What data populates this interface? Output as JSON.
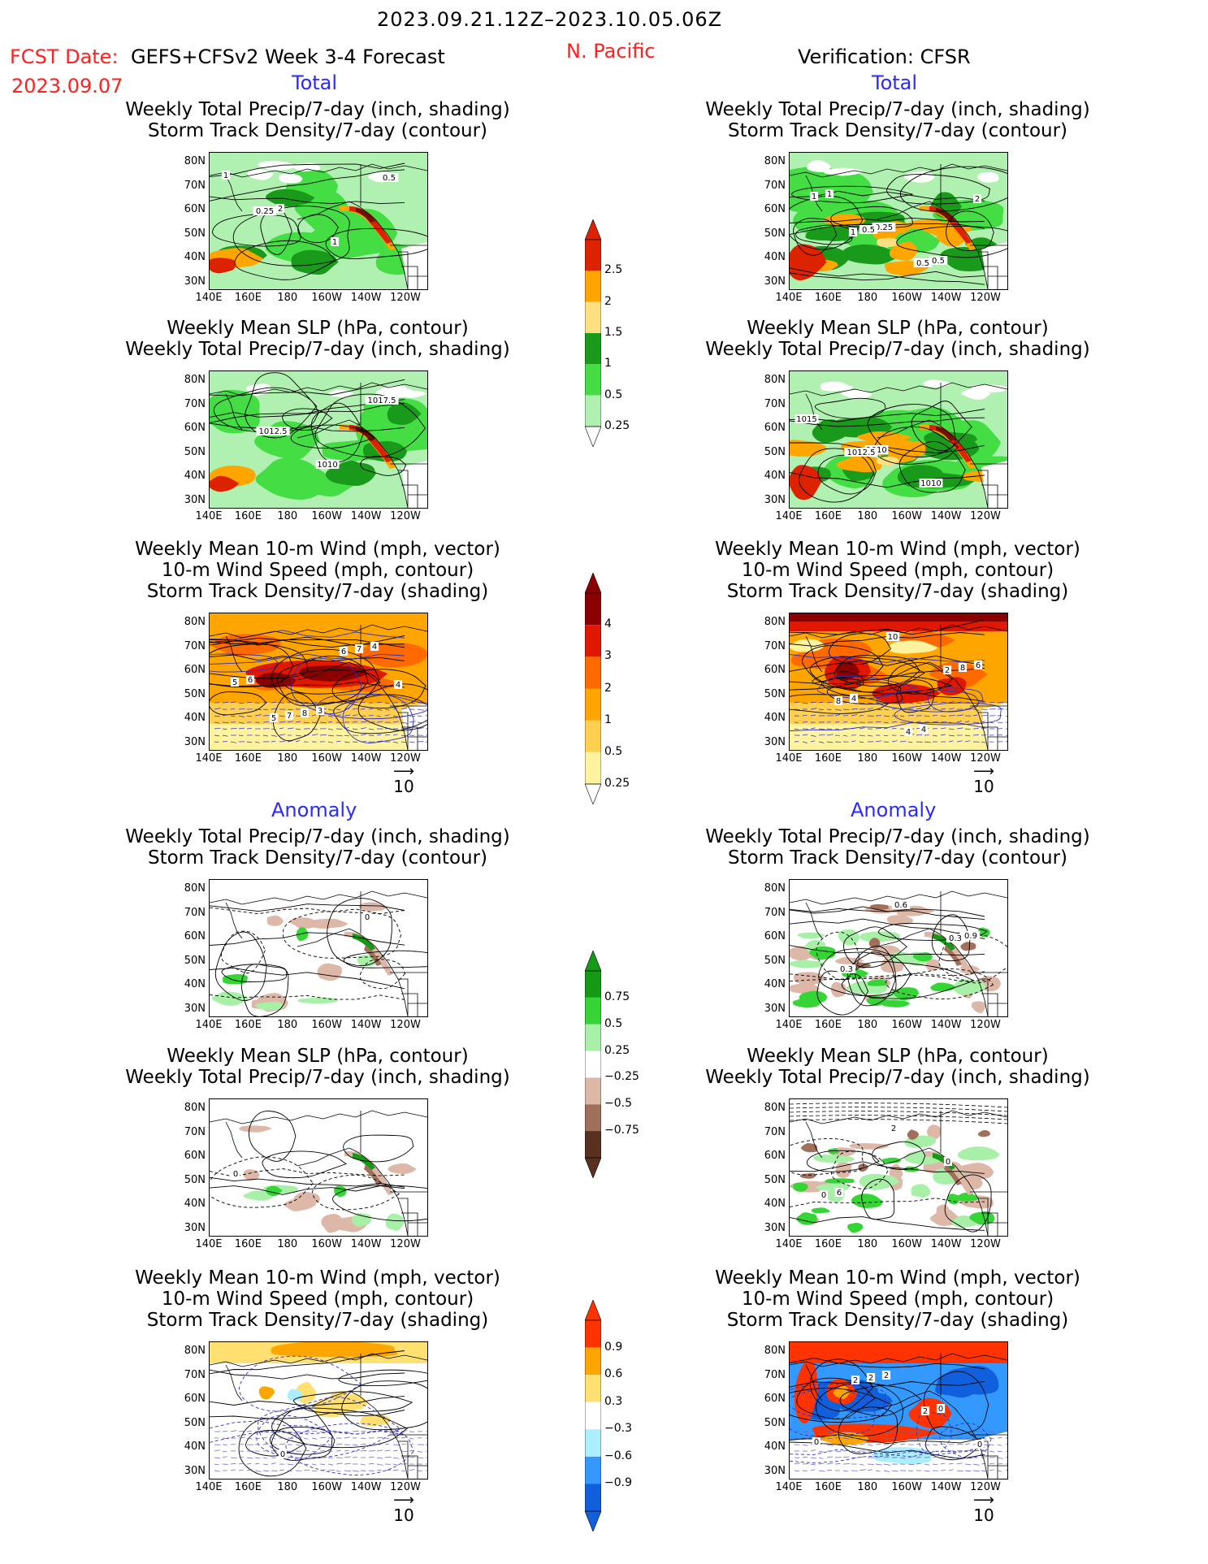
{
  "header": {
    "period": "2023.09.21.12Z–2023.10.05.06Z",
    "fcst_label": "FCST Date:",
    "model": "GEFS+CFSv2 Week 3-4 Forecast",
    "region": "N. Pacific",
    "fcst_date": "2023.09.07",
    "verification": "Verification: CFSR"
  },
  "sections": {
    "total_left": "Total",
    "total_right": "Total",
    "anomaly_left": "Anomaly",
    "anomaly_right": "Anomaly"
  },
  "titles": {
    "precip_storm": [
      "Weekly Total Precip/7-day (inch, shading)",
      "Storm Track Density/7-day (contour)"
    ],
    "slp_precip": [
      "Weekly Mean SLP (hPa, contour)",
      "Weekly Total Precip/7-day (inch, shading)"
    ],
    "wind_storm": [
      "Weekly Mean 10-m Wind (mph, vector)",
      "10-m Wind Speed (mph, contour)",
      "Storm Track Density/7-day (shading)"
    ]
  },
  "axes": {
    "lat_labels": [
      "80N",
      "70N",
      "60N",
      "50N",
      "40N",
      "30N"
    ],
    "lon_labels": [
      "140E",
      "160E",
      "180",
      "160W",
      "140W",
      "120W"
    ]
  },
  "ref_vector": "10",
  "colorbars": {
    "precip_total": {
      "labels": [
        "2.5",
        "2",
        "1.5",
        "1",
        "0.5",
        "0.25"
      ],
      "colors": [
        "#dd2200",
        "#ffa500",
        "#ffe080",
        "#1a9a1a",
        "#44dd44",
        "#b0f0b0"
      ]
    },
    "storm_total": {
      "labels": [
        "4",
        "3",
        "2",
        "1",
        "0.5",
        "0.25"
      ],
      "colors": [
        "#8b0000",
        "#e01800",
        "#ff6a00",
        "#ffa500",
        "#ffd050",
        "#fff3a0"
      ]
    },
    "precip_anom": {
      "labels": [
        "0.75",
        "0.5",
        "0.25",
        "−0.25",
        "−0.5",
        "−0.75"
      ],
      "colors": [
        "#159a15",
        "#35d535",
        "#a8f0a8",
        "#ffffff",
        "#ddb8a8",
        "#a0705a",
        "#5a3020"
      ]
    },
    "storm_anom": {
      "labels": [
        "0.9",
        "0.6",
        "0.3",
        "−0.3",
        "−0.6",
        "−0.9"
      ],
      "colors": [
        "#ff3300",
        "#ffa500",
        "#ffe070",
        "#ffffff",
        "#aaeeff",
        "#3399ff",
        "#1060dd"
      ]
    }
  },
  "panels": [
    {
      "id": "p1",
      "title": "precip_storm",
      "labels": [
        "1",
        "2",
        "1",
        "0.5",
        "0.25"
      ]
    },
    {
      "id": "p2",
      "title": "precip_storm",
      "labels": [
        "1",
        "0.25",
        "0.5",
        "1",
        "0.5",
        "0.5",
        "2",
        "1"
      ]
    },
    {
      "id": "p3",
      "title": "slp_precip",
      "labels": [
        "1012.5",
        "1010",
        "1017.5"
      ]
    },
    {
      "id": "p4",
      "title": "slp_precip",
      "labels": [
        "1010",
        "1010",
        "1015",
        "1012.5"
      ]
    },
    {
      "id": "p5",
      "title": "wind_storm",
      "labels": [
        "3",
        "4",
        "6",
        "8",
        "7",
        "5",
        "7",
        "6",
        "4",
        "5"
      ]
    },
    {
      "id": "p6",
      "title": "wind_storm",
      "labels": [
        "4",
        "6",
        "4",
        "4",
        "8",
        "8",
        "10",
        "2"
      ]
    },
    {
      "id": "p7",
      "title": "precip_storm",
      "labels": [
        "0"
      ]
    },
    {
      "id": "p8",
      "title": "precip_storm",
      "labels": [
        "0.9",
        "0.3",
        "0.6",
        "0.3"
      ]
    },
    {
      "id": "p9",
      "title": "slp_precip",
      "labels": [
        "0"
      ]
    },
    {
      "id": "p10",
      "title": "slp_precip",
      "labels": [
        "6",
        "2",
        "0",
        "0"
      ]
    },
    {
      "id": "p11",
      "title": "wind_storm",
      "labels": [
        "0"
      ]
    },
    {
      "id": "p12",
      "title": "wind_storm",
      "labels": [
        "2",
        "0",
        "0",
        "2",
        "2",
        "0",
        "2"
      ]
    }
  ]
}
